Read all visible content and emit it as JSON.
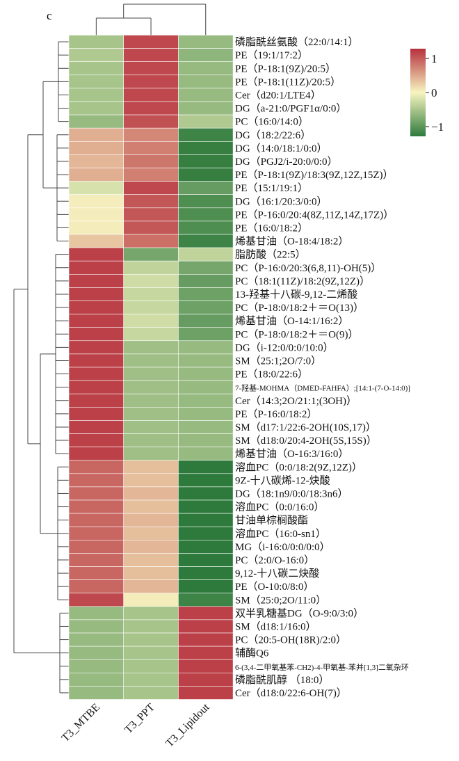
{
  "chart_data": {
    "type": "heatmap",
    "panel_label": "c",
    "columns": [
      "T3_MTBE",
      "T3_PPT",
      "T3_Lipidout"
    ],
    "rows": [
      "磷脂酰丝氨酸（22:0/14:1）",
      "PE（19:1/17:2）",
      "PE（P-18:1(9Z)/20:5）",
      "PE（P-18:1(11Z)/20:5）",
      "Cer（d20:1/LTE4）",
      "DG（a-21:0/PGF1α/0:0）",
      "PC（16:0/14:0）",
      "DG（18:2/22:6）",
      "DG（14:0/18:1/0:0）",
      "DG（PGJ2/i-20:0/0:0）",
      "PE（P-18:1(9Z)/18:3(9Z,12Z,15Z)）",
      "PE（15:1/19:1）",
      "DG（16:1/20:3/0:0）",
      "PE（P-16:0/20:4(8Z,11Z,14Z,17Z)）",
      "PE（16:0/18:2）",
      "烯基甘油（O-18:4/18:2）",
      "脂肪酸（22:5）",
      "PC（P-16:0/20:3(6,8,11)-OH(5)）",
      "PC（18:1(11Z)/18:2(9Z,12Z)）",
      "13-羟基十八碳-9,12-二烯酸",
      "PC（P-18:0/18:2＋＝O(13)）",
      "烯基甘油（O-14:1/16:2）",
      "PC（P-18:0/18:2＋＝O(9)）",
      "DG（i-12:0/0:0/10:0）",
      "SM（25:1;2O/7:0）",
      "PE（18:0/22:6）",
      "7-羟基-MOHMA（DMED-FAHFA）;[14:1-(7-O-14:0)]",
      "Cer（14:3;2O/21:1;(3OH)）",
      "PE（P-16:0/18:2）",
      "SM（d17:1/22:6-2OH(10S,17)）",
      "SM（d18:0/20:4-2OH(5S,15S)）",
      "烯基甘油（O-16:3/16:0）",
      "溶血PC（0:0/18:2(9Z,12Z)）",
      "9Z-十八碳烯-12-炔酸",
      "DG（18:1n9/0:0/18:3n6）",
      "溶血PC（0:0/16:0）",
      "甘油单棕榈酸酯",
      "溶血PC（16:0-sn1）",
      "MG（i-16:0/0:0/0:0）",
      "PC（2:0/O-16:0）",
      "9,12-十八碳二炔酸",
      "PE（O-10:0/8:0）",
      "SM（25:0;2O/11:0）",
      "双半乳糖基DG（O-9:0/3:0）",
      "SM（d18:1/16:0）",
      "PC（20:5-OH(18R)/2:0）",
      "辅酶Q6",
      "6-(3,4-二甲氧基苯-CH2)-4-甲氧基-苯并[1,3]二氧杂环",
      "磷脂酰肌醇 （18:0）",
      "Cer（d18:0/22:6-OH(7)）"
    ],
    "values": [
      [
        -0.5,
        1.1,
        -0.6
      ],
      [
        -0.45,
        1.1,
        -0.65
      ],
      [
        -0.5,
        1.1,
        -0.6
      ],
      [
        -0.5,
        1.1,
        -0.6
      ],
      [
        -0.5,
        1.1,
        -0.6
      ],
      [
        -0.5,
        1.1,
        -0.6
      ],
      [
        -0.6,
        1.05,
        -0.45
      ],
      [
        0.45,
        0.7,
        -1.15
      ],
      [
        0.45,
        0.75,
        -1.2
      ],
      [
        0.4,
        0.8,
        -1.2
      ],
      [
        0.45,
        0.75,
        -1.2
      ],
      [
        -0.2,
        1.1,
        -0.9
      ],
      [
        0.05,
        1.0,
        -1.05
      ],
      [
        0.05,
        1.0,
        -1.05
      ],
      [
        0.05,
        1.0,
        -1.05
      ],
      [
        0.3,
        0.85,
        -1.15
      ],
      [
        1.15,
        -0.8,
        -0.35
      ],
      [
        1.15,
        -0.35,
        -0.8
      ],
      [
        1.15,
        -0.25,
        -0.9
      ],
      [
        1.15,
        -0.3,
        -0.85
      ],
      [
        1.15,
        -0.3,
        -0.85
      ],
      [
        1.15,
        -0.25,
        -0.9
      ],
      [
        1.15,
        -0.3,
        -0.85
      ],
      [
        1.15,
        -0.55,
        -0.6
      ],
      [
        1.15,
        -0.55,
        -0.6
      ],
      [
        1.15,
        -0.55,
        -0.6
      ],
      [
        1.15,
        -0.55,
        -0.6
      ],
      [
        1.15,
        -0.55,
        -0.6
      ],
      [
        1.15,
        -0.55,
        -0.6
      ],
      [
        1.15,
        -0.55,
        -0.6
      ],
      [
        1.15,
        -0.55,
        -0.6
      ],
      [
        1.15,
        -0.55,
        -0.6
      ],
      [
        0.9,
        0.35,
        -1.25
      ],
      [
        0.9,
        0.35,
        -1.25
      ],
      [
        0.9,
        0.4,
        -1.25
      ],
      [
        0.9,
        0.35,
        -1.25
      ],
      [
        0.9,
        0.4,
        -1.25
      ],
      [
        0.9,
        0.35,
        -1.25
      ],
      [
        0.9,
        0.4,
        -1.25
      ],
      [
        0.9,
        0.35,
        -1.25
      ],
      [
        0.9,
        0.35,
        -1.25
      ],
      [
        0.9,
        0.4,
        -1.25
      ],
      [
        1.1,
        0.05,
        -1.15
      ],
      [
        -0.6,
        -0.5,
        1.15
      ],
      [
        -0.6,
        -0.5,
        1.15
      ],
      [
        -0.6,
        -0.5,
        1.15
      ],
      [
        -0.6,
        -0.5,
        1.15
      ],
      [
        -0.6,
        -0.5,
        1.15
      ],
      [
        -0.6,
        -0.5,
        1.15
      ],
      [
        -0.6,
        -0.5,
        1.15
      ]
    ],
    "colorbar": {
      "ticks": [
        1,
        0,
        -1
      ],
      "tick_labels": [
        "1",
        "0",
        "−1"
      ],
      "colors": {
        "low": "#2e7a3c",
        "mid": "#f7f5c0",
        "high": "#b6303d"
      }
    },
    "row_dendrogram": true,
    "column_dendrogram": true,
    "legend_position": "top-right"
  }
}
